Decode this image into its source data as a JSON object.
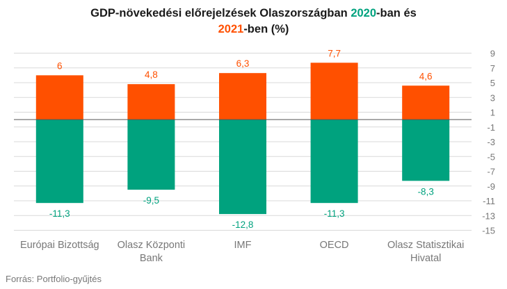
{
  "title": {
    "part1": "GDP-növekedési előrejelzések Olaszországban ",
    "year2020": "2020",
    "part2": "-ban és",
    "year2021": "2021",
    "part3": "-ben (%)"
  },
  "source": "Forrás: Portfolio-gyűjtés",
  "colors": {
    "s2020": "#00a27e",
    "s2021": "#ff5000",
    "axis": "#555555",
    "grid": "#d9d9d9",
    "text": "#777777"
  },
  "chart_data": {
    "type": "bar",
    "stacked": "diverging",
    "categories": [
      [
        "Európai Bizottság"
      ],
      [
        "Olasz Központi",
        "Bank"
      ],
      [
        "IMF"
      ],
      [
        "OECD"
      ],
      [
        "Olasz Statisztikai",
        "Hivatal"
      ]
    ],
    "series": [
      {
        "name": "2020",
        "values": [
          -11.3,
          -9.5,
          -12.8,
          -11.3,
          -8.3
        ],
        "labels": [
          "-11,3",
          "-9,5",
          "-12,8",
          "-11,3",
          "-8,3"
        ]
      },
      {
        "name": "2021",
        "values": [
          6,
          4.8,
          6.3,
          7.7,
          4.6
        ],
        "labels": [
          "6",
          "4,8",
          "6,3",
          "7,7",
          "4,6"
        ]
      }
    ],
    "yticks": [
      9,
      7,
      5,
      3,
      1,
      -1,
      -3,
      -5,
      -7,
      -9,
      -11,
      -13,
      -15
    ],
    "ylim": [
      -15,
      9
    ],
    "grid": true,
    "yaxis_position": "right"
  }
}
